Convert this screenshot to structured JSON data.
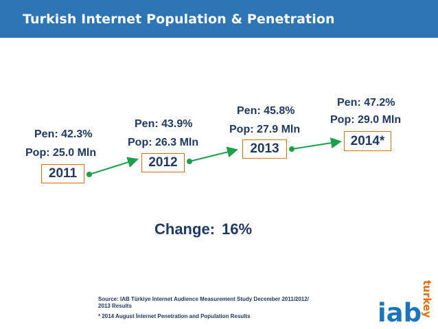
{
  "header": {
    "title": "Turkish Internet Population & Penetration"
  },
  "timeline": [
    {
      "year": "2011",
      "pen": "Pen: 42.3%",
      "pop": "Pop: 25.0 Mln"
    },
    {
      "year": "2012",
      "pen": "Pen: 43.9%",
      "pop": "Pop: 26.3 Mln"
    },
    {
      "year": "2013",
      "pen": "Pen: 45.8%",
      "pop": "Pop: 27.9 Mln"
    },
    {
      "year": "2014*",
      "pen": "Pen: 47.2%",
      "pop": "Pop: 29.0 Mln"
    }
  ],
  "change": {
    "label": "Change:",
    "value": "16%"
  },
  "footer": {
    "source_line1": "Source: IAB Türkiye Internet Audience Measurement Study December 2011/2012/",
    "source_line2": "2013 Results",
    "note": "* 2014 August İnternet  Penetration and Population Results"
  },
  "logo": {
    "text_main": "iab",
    "text_sub": "turkey"
  },
  "colors": {
    "header": "#2e75b6",
    "text": "#1f3864",
    "arrow": "#1e9e4a",
    "box_border": "#e46c0a"
  }
}
